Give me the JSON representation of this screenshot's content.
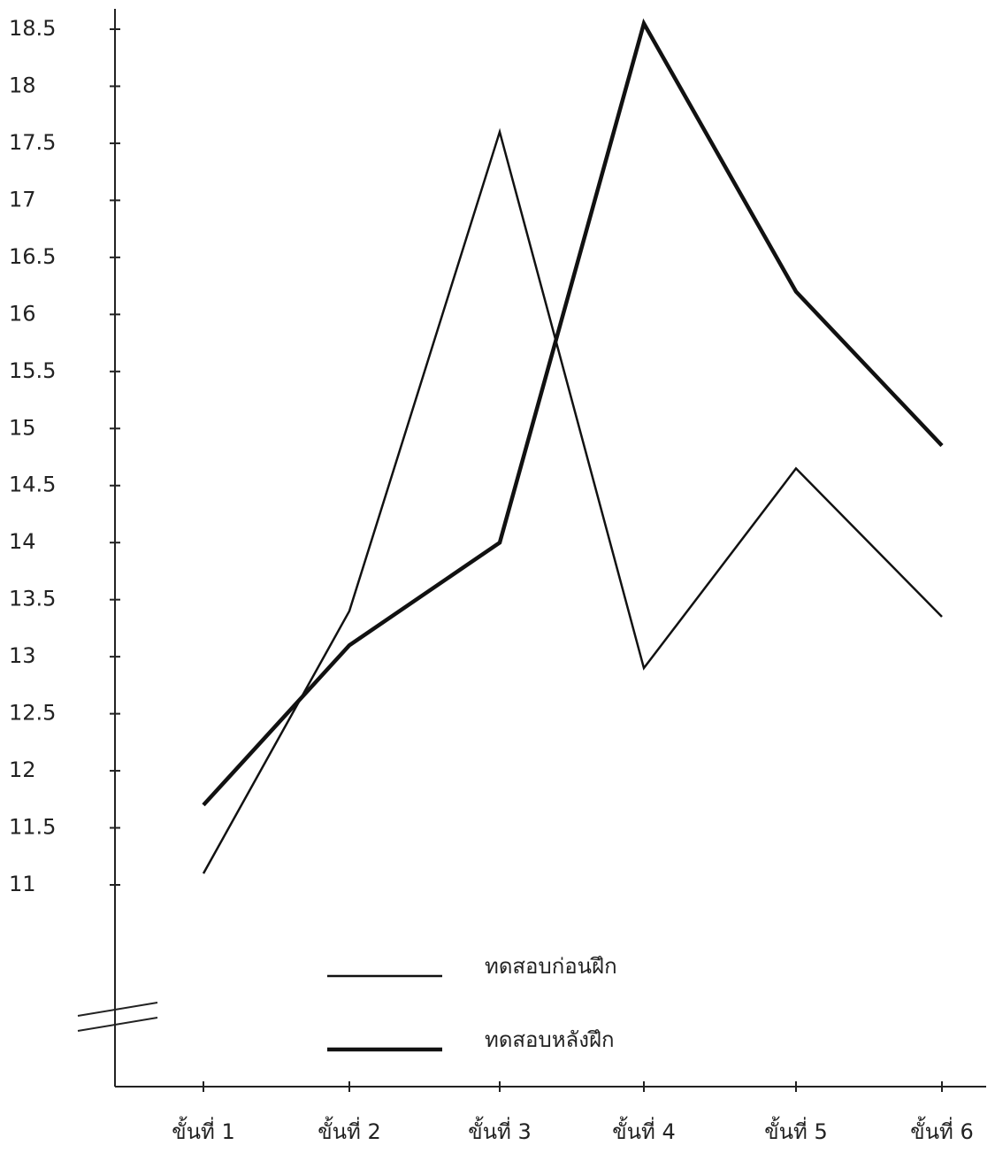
{
  "chart_data": {
    "type": "line",
    "categories": [
      "ขั้นที่ 1",
      "ขั้นที่ 2",
      "ขั้นที่ 3",
      "ขั้นที่ 4",
      "ขั้นที่ 5",
      "ขั้นที่ 6"
    ],
    "series": [
      {
        "name": "ทดสอบก่อนฝึก",
        "color": "#111111",
        "values": [
          11.1,
          13.4,
          17.6,
          12.9,
          14.65,
          13.35
        ]
      },
      {
        "name": "ทดสอบหลังฝึก",
        "color": "#111111",
        "values": [
          11.7,
          13.1,
          14.0,
          18.55,
          16.2,
          14.85
        ]
      }
    ],
    "ylim": [
      11,
      18.5
    ],
    "yticks": [
      11,
      11.5,
      12,
      12.5,
      13,
      13.5,
      14,
      14.5,
      15,
      15.5,
      16,
      16.5,
      17,
      17.5,
      18,
      18.5
    ],
    "grid": false
  }
}
